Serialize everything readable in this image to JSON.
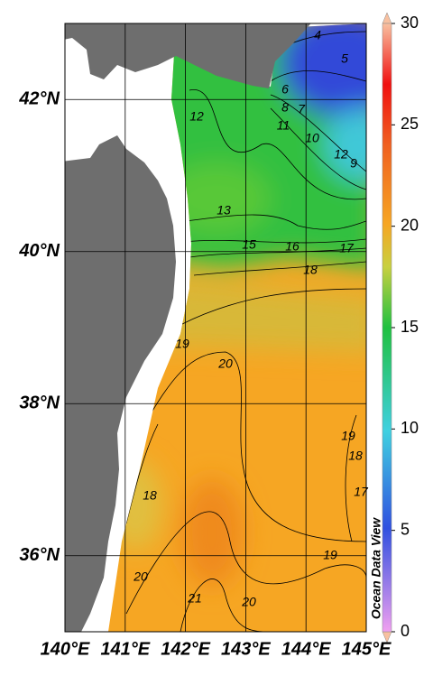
{
  "map": {
    "lon_ticks": [
      {
        "value": 140,
        "label": "140°E"
      },
      {
        "value": 141,
        "label": "141°E"
      },
      {
        "value": 142,
        "label": "142°E"
      },
      {
        "value": 143,
        "label": "143°E"
      },
      {
        "value": 144,
        "label": "144°E"
      },
      {
        "value": 145,
        "label": "145°E"
      }
    ],
    "lat_ticks": [
      {
        "value": 42,
        "label": "42°N"
      },
      {
        "value": 40,
        "label": "40°N"
      },
      {
        "value": 38,
        "label": "38°N"
      },
      {
        "value": 36,
        "label": "36°N"
      }
    ],
    "lonlim": [
      140,
      145
    ],
    "latlim": [
      35,
      43
    ],
    "colorbar": {
      "lim": [
        0,
        30
      ],
      "ticks": [
        0,
        5,
        10,
        15,
        20,
        25,
        30
      ]
    },
    "contour_labels": [
      4,
      5,
      6,
      8,
      7,
      11,
      10,
      12,
      9,
      12,
      13,
      15,
      16,
      17,
      18,
      19,
      20,
      19,
      18,
      17,
      18,
      19,
      20,
      21,
      20
    ],
    "watermark": "Ocean Data View"
  }
}
